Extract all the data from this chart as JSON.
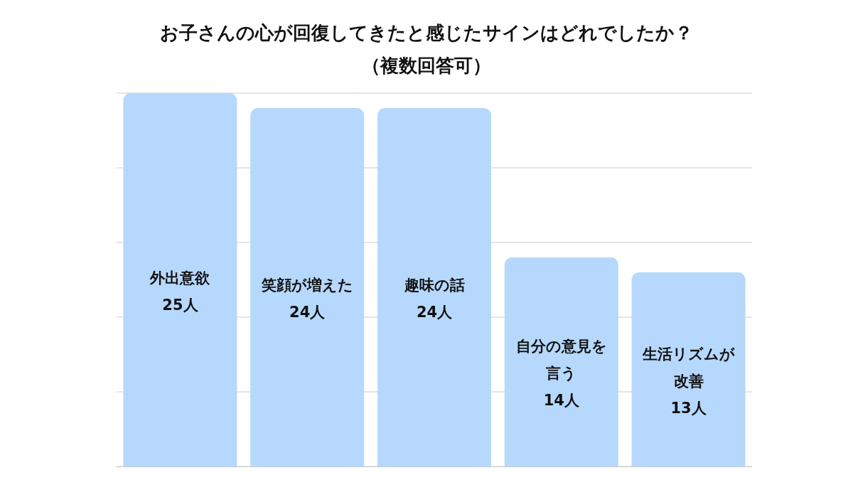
{
  "chart_data": {
    "type": "bar",
    "title": "お子さんの心が回復してきたと感じたサインはどれでしたか？",
    "subtitle": "（複数回答可）",
    "categories": [
      "外出意欲",
      "笑顔が増えた",
      "趣味の話",
      "自分の意見を言う",
      "生活リズムが改善"
    ],
    "values": [
      25,
      24,
      24,
      14,
      13
    ],
    "value_labels": [
      "25人",
      "24人",
      "24人",
      "14人",
      "13人"
    ],
    "color": "#b6d8fc",
    "ylim": [
      0,
      25
    ],
    "yticks": [
      {
        "value": 0,
        "label": null
      },
      {
        "value": 5,
        "label": null
      },
      {
        "value": 10,
        "label": null
      },
      {
        "value": 15,
        "label": null
      },
      {
        "value": 20,
        "label": null
      },
      {
        "value": 25,
        "label": null
      }
    ],
    "grid": "y",
    "tick_labels": false
  }
}
